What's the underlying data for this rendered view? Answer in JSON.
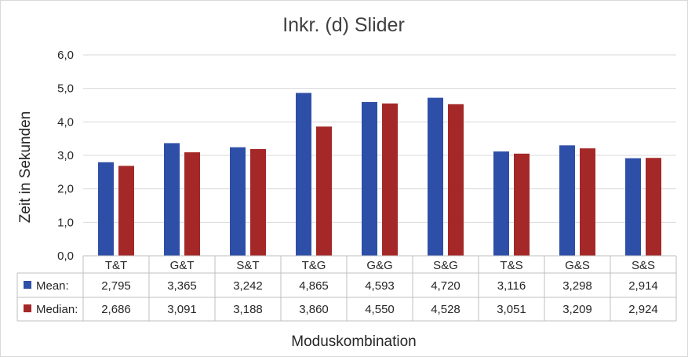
{
  "chart_data": {
    "type": "bar",
    "title": "Inkr. (d) Slider",
    "xlabel": "Moduskombination",
    "ylabel": "Zeit in Sekunden",
    "ylim": [
      0,
      6
    ],
    "yticks": [
      "0,0",
      "1,0",
      "2,0",
      "3,0",
      "4,0",
      "5,0",
      "6,0"
    ],
    "grid": true,
    "legend": "data-table",
    "categories": [
      "T&T",
      "G&T",
      "S&T",
      "T&G",
      "G&G",
      "S&G",
      "T&S",
      "G&S",
      "S&S"
    ],
    "series": [
      {
        "name": "Mean:",
        "color": "#2e4fa8",
        "values": [
          2.795,
          3.365,
          3.242,
          4.865,
          4.593,
          4.72,
          3.116,
          3.298,
          2.914
        ],
        "labels": [
          "2,795",
          "3,365",
          "3,242",
          "4,865",
          "4,593",
          "4,720",
          "3,116",
          "3,298",
          "2,914"
        ]
      },
      {
        "name": "Median:",
        "color": "#a52828",
        "values": [
          2.686,
          3.091,
          3.188,
          3.86,
          4.55,
          4.528,
          3.051,
          3.209,
          2.924
        ],
        "labels": [
          "2,686",
          "3,091",
          "3,188",
          "3,860",
          "4,550",
          "4,528",
          "3,051",
          "3,209",
          "2,924"
        ]
      }
    ]
  }
}
